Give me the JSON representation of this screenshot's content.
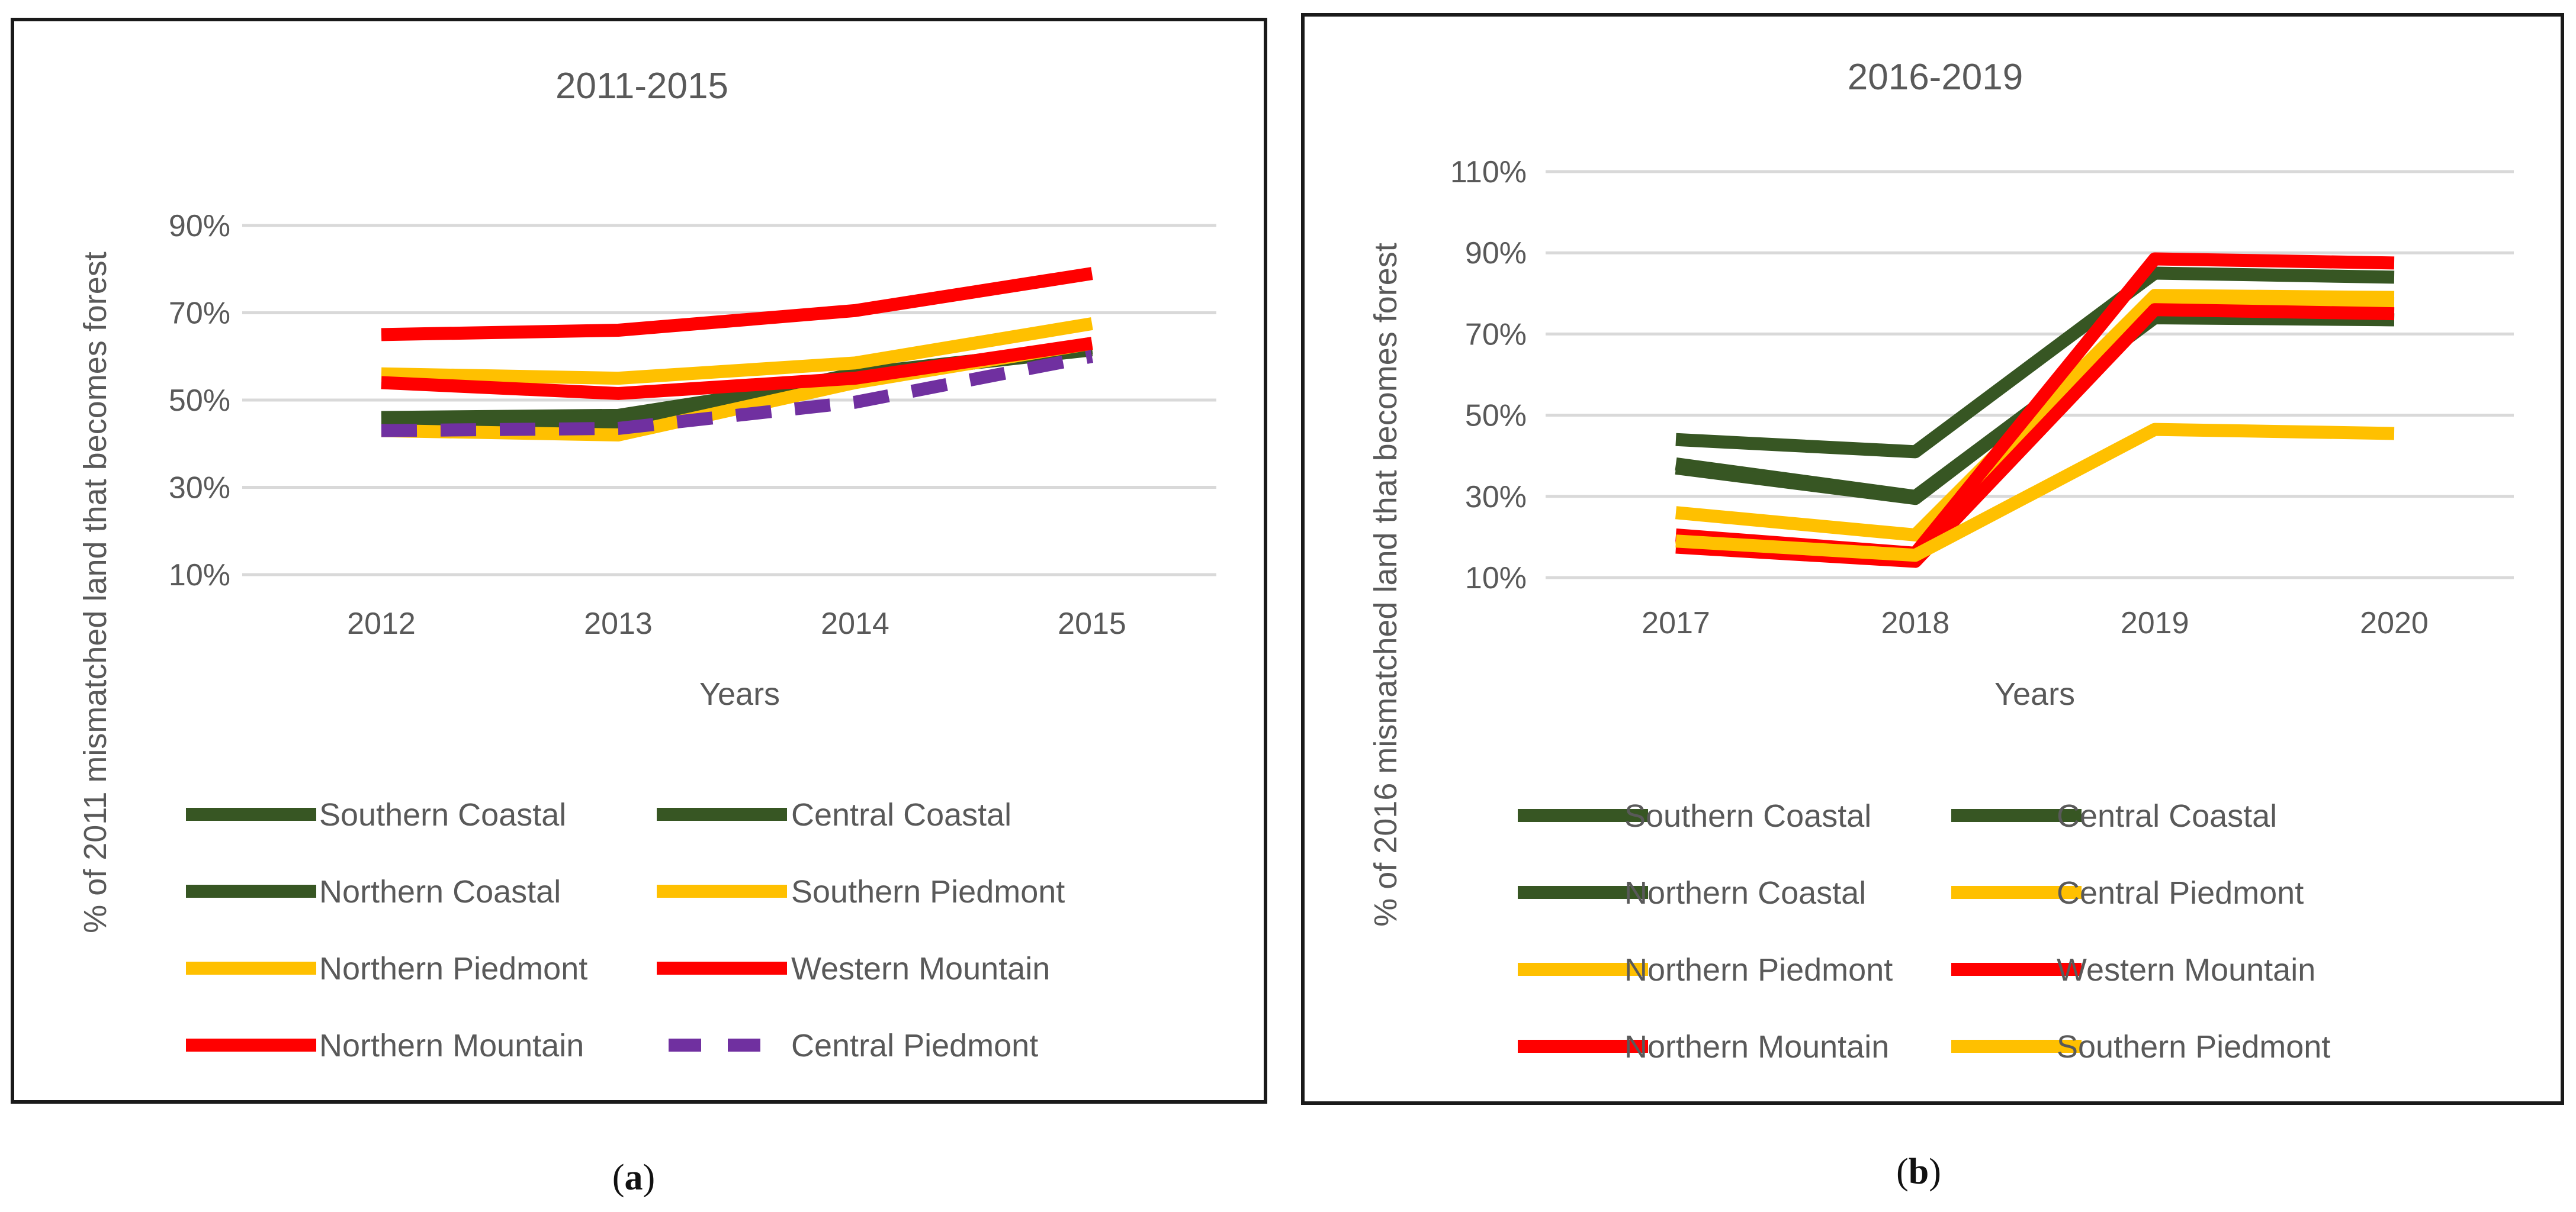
{
  "chart_data": [
    {
      "type": "line",
      "title": "2011-2015",
      "xlabel": "Years",
      "ylabel": "% of 2011 mismatched land that becomes forest",
      "categories": [
        "2012",
        "2013",
        "2014",
        "2015"
      ],
      "ylim": [
        10,
        90
      ],
      "yticks": [
        "10%",
        "30%",
        "50%",
        "70%",
        "90%"
      ],
      "ytick_values": [
        10,
        30,
        50,
        70,
        90
      ],
      "grid": true,
      "legend_position": "bottom",
      "series": [
        {
          "name": "Southern Coastal",
          "color": "#375623",
          "dashed": false,
          "values": [
            45,
            45,
            56,
            62
          ]
        },
        {
          "name": "Central Coastal",
          "color": "#375623",
          "dashed": false,
          "values": [
            46,
            46.5,
            55,
            62
          ]
        },
        {
          "name": "Northern Coastal",
          "color": "#375623",
          "dashed": false,
          "values": [
            45.5,
            46,
            55.5,
            61.5
          ]
        },
        {
          "name": "Southern Piedmont",
          "color": "#FFC000",
          "dashed": false,
          "values": [
            43,
            42,
            54,
            63
          ]
        },
        {
          "name": "Northern Piedmont",
          "color": "#FFC000",
          "dashed": false,
          "values": [
            56,
            55,
            58.5,
            67.5
          ]
        },
        {
          "name": "Western Mountain",
          "color": "#FF0000",
          "dashed": false,
          "values": [
            65,
            66,
            70.5,
            79
          ]
        },
        {
          "name": "Northern Mountain",
          "color": "#FF0000",
          "dashed": false,
          "values": [
            54,
            51.5,
            55,
            63
          ]
        },
        {
          "name": "Central Piedmont",
          "color": "#7030A0",
          "dashed": true,
          "values": [
            43,
            43.5,
            49.5,
            60
          ]
        }
      ],
      "sub_label": {
        "open": "(",
        "letter": "a",
        "close": ")"
      }
    },
    {
      "type": "line",
      "title": "2016-2019",
      "xlabel": "Years",
      "ylabel": "% of 2016 mismatched land that becomes forest",
      "categories": [
        "2017",
        "2018",
        "2019",
        "2020"
      ],
      "ylim": [
        10,
        110
      ],
      "yticks": [
        "10%",
        "30%",
        "50%",
        "70%",
        "90%",
        "110%"
      ],
      "ytick_values": [
        10,
        30,
        50,
        70,
        90,
        110
      ],
      "grid": true,
      "legend_position": "bottom",
      "series": [
        {
          "name": "Southern Coastal",
          "color": "#375623",
          "dashed": false,
          "values": [
            44,
            41,
            85,
            84
          ]
        },
        {
          "name": "Central Coastal",
          "color": "#375623",
          "dashed": false,
          "values": [
            38,
            30,
            74,
            73.5
          ]
        },
        {
          "name": "Northern Coastal",
          "color": "#375623",
          "dashed": false,
          "values": [
            37,
            29.5,
            74.5,
            73.5
          ]
        },
        {
          "name": "Central Piedmont",
          "color": "#FFC000",
          "dashed": false,
          "values": [
            26,
            20.5,
            79.5,
            79
          ]
        },
        {
          "name": "Northern Piedmont",
          "color": "#FFC000",
          "dashed": false,
          "values": [
            20,
            15,
            78,
            77.5
          ]
        },
        {
          "name": "Western Mountain",
          "color": "#FF0000",
          "dashed": false,
          "values": [
            20.5,
            16,
            88.5,
            87.5
          ]
        },
        {
          "name": "Northern Mountain",
          "color": "#FF0000",
          "dashed": false,
          "values": [
            17.5,
            14,
            76,
            75
          ]
        },
        {
          "name": "Southern Piedmont",
          "color": "#FFC000",
          "dashed": false,
          "values": [
            19,
            15.5,
            46.5,
            45.5
          ]
        }
      ],
      "sub_label": {
        "open": "(",
        "letter": "b",
        "close": ")"
      }
    }
  ]
}
